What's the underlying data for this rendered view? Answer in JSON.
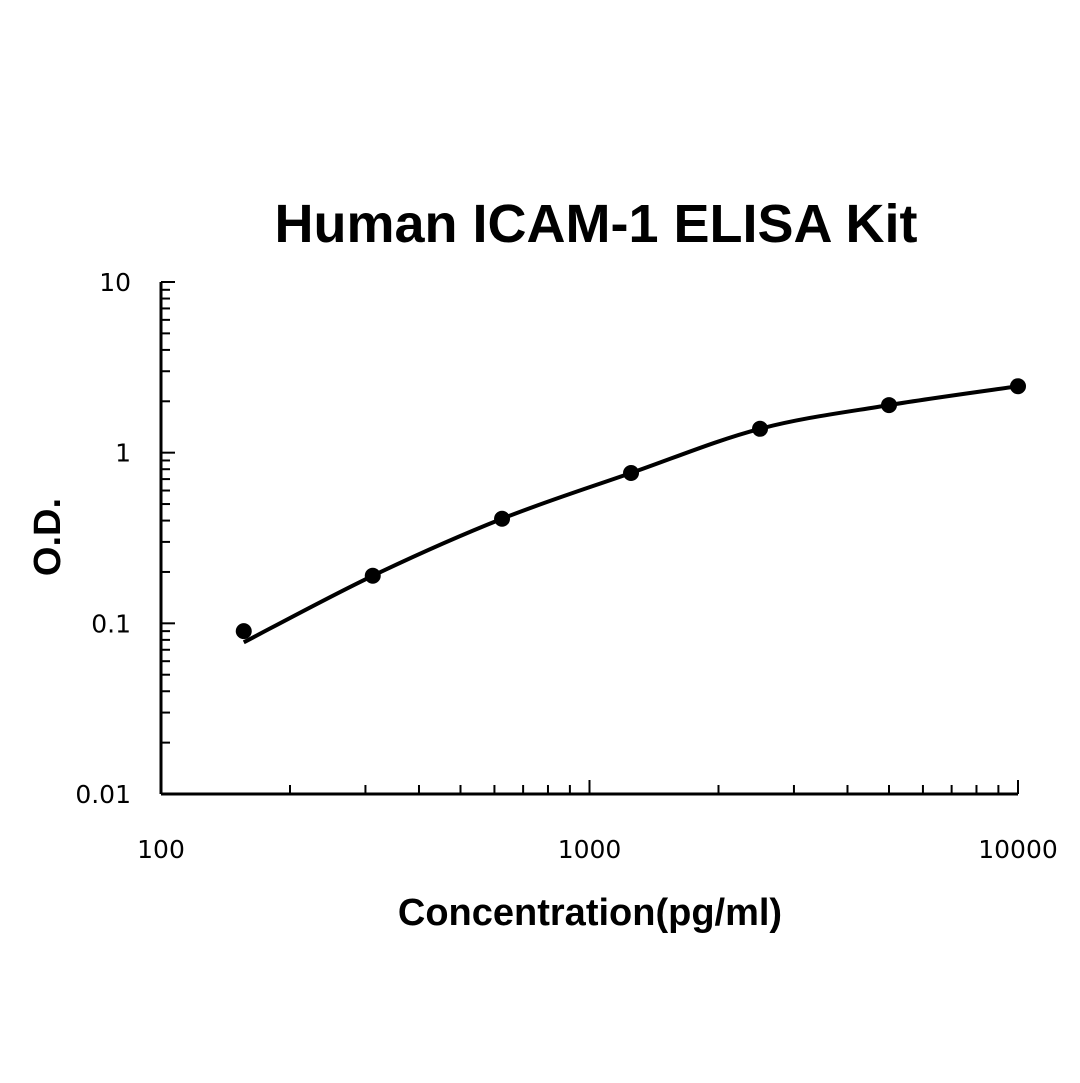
{
  "chart_data": {
    "type": "scatter",
    "title": "Human ICAM-1 ELISA Kit",
    "xlabel": "Concentration(pg/ml)",
    "ylabel": "O.D.",
    "x_scale": "log",
    "y_scale": "log",
    "xlim": [
      100,
      10000
    ],
    "ylim": [
      0.01,
      10
    ],
    "x_tick_labels": [
      "100",
      "1000",
      "10000"
    ],
    "y_tick_labels": [
      "10",
      "1",
      "0.1",
      "0.01"
    ],
    "grid": false,
    "legend": "none",
    "series": [
      {
        "style": "points-with-fitted-curve",
        "x": [
          156,
          312,
          625,
          1250,
          2500,
          5000,
          10000
        ],
        "y": [
          0.09,
          0.19,
          0.41,
          0.76,
          1.38,
          1.9,
          2.45
        ]
      }
    ],
    "colors": {
      "marks": "#000000",
      "background": "#ffffff"
    }
  }
}
